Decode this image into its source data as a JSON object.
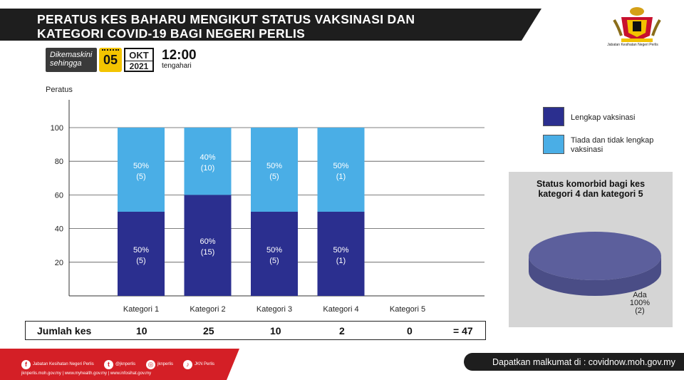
{
  "header": {
    "title_line1": "PERATUS KES BAHARU MENGIKUT STATUS VAKSINASI  DAN",
    "title_line2": "KATEGORI COVID-19 BAGI NEGERI PERLIS",
    "banner_color": "#1e1e1e"
  },
  "crest": {
    "label": "Jabatan Kesihatan Negeri Perlis"
  },
  "updated": {
    "line1": "Dikemaskini",
    "line2": "sehingga",
    "day": "05",
    "month": "OKT",
    "year": "2021",
    "time": "12:00",
    "time_label": "tengahari"
  },
  "chart_data": {
    "type": "bar",
    "stacked": true,
    "ylabel": "Peratus",
    "ylim": [
      0,
      100
    ],
    "yticks": [
      20,
      40,
      60,
      80,
      100
    ],
    "categories": [
      "Kategori 1",
      "Kategori 2",
      "Kategori 3",
      "Kategori 4",
      "Kategori 5"
    ],
    "series": [
      {
        "name": "Lengkap vaksinasi",
        "color": "#2b2f8f",
        "values": [
          50,
          60,
          50,
          50,
          null
        ],
        "labels": [
          [
            "50%",
            "(5)"
          ],
          [
            "60%",
            "(15)"
          ],
          [
            "50%",
            "(5)"
          ],
          [
            "50%",
            "(1)"
          ],
          null
        ]
      },
      {
        "name": "Tiada dan tidak lengkap vaksinasi",
        "color": "#4aaee6",
        "values": [
          50,
          40,
          50,
          50,
          null
        ],
        "labels": [
          [
            "50%",
            "(5)"
          ],
          [
            "40%",
            "(10)"
          ],
          [
            "50%",
            "(5)"
          ],
          [
            "50%",
            "(1)"
          ],
          null
        ]
      }
    ],
    "legend": "right"
  },
  "legend": {
    "items": [
      {
        "label": "Lengkap vaksinasi",
        "color": "#2b2f8f"
      },
      {
        "label": "Tiada dan tidak lengkap vaksinasi",
        "color": "#4aaee6"
      }
    ]
  },
  "totals": {
    "label": "Jumlah kes",
    "values": [
      "10",
      "25",
      "10",
      "2",
      "0"
    ],
    "total": "= 47"
  },
  "comorbid": {
    "title": "Status komorbid bagi kes kategori 4 dan kategori 5",
    "chart_data": {
      "type": "pie",
      "slices": [
        {
          "name": "Ada",
          "percent": "100%",
          "count": "(2)",
          "value": 100,
          "color": "#5c5f9c"
        }
      ]
    }
  },
  "footer": {
    "social": [
      {
        "icon": "facebook-icon",
        "glyph": "f",
        "text": "Jabatan Kesihatan Negeri Perlis"
      },
      {
        "icon": "twitter-icon",
        "glyph": "t",
        "text": "@jknperlis"
      },
      {
        "icon": "instagram-icon",
        "glyph": "◎",
        "text": "jknperlis"
      },
      {
        "icon": "tiktok-icon",
        "glyph": "♪",
        "text": "JKN Perlis"
      }
    ],
    "links": "jknperlis.moh.gov.my  |  www.myhealth.gov.my  |  www.infosihat.gov.my",
    "info": "Dapatkan malkumat di : covidnow.moh.gov.my",
    "red": "#d41f26",
    "dark": "#1e1e1e"
  }
}
